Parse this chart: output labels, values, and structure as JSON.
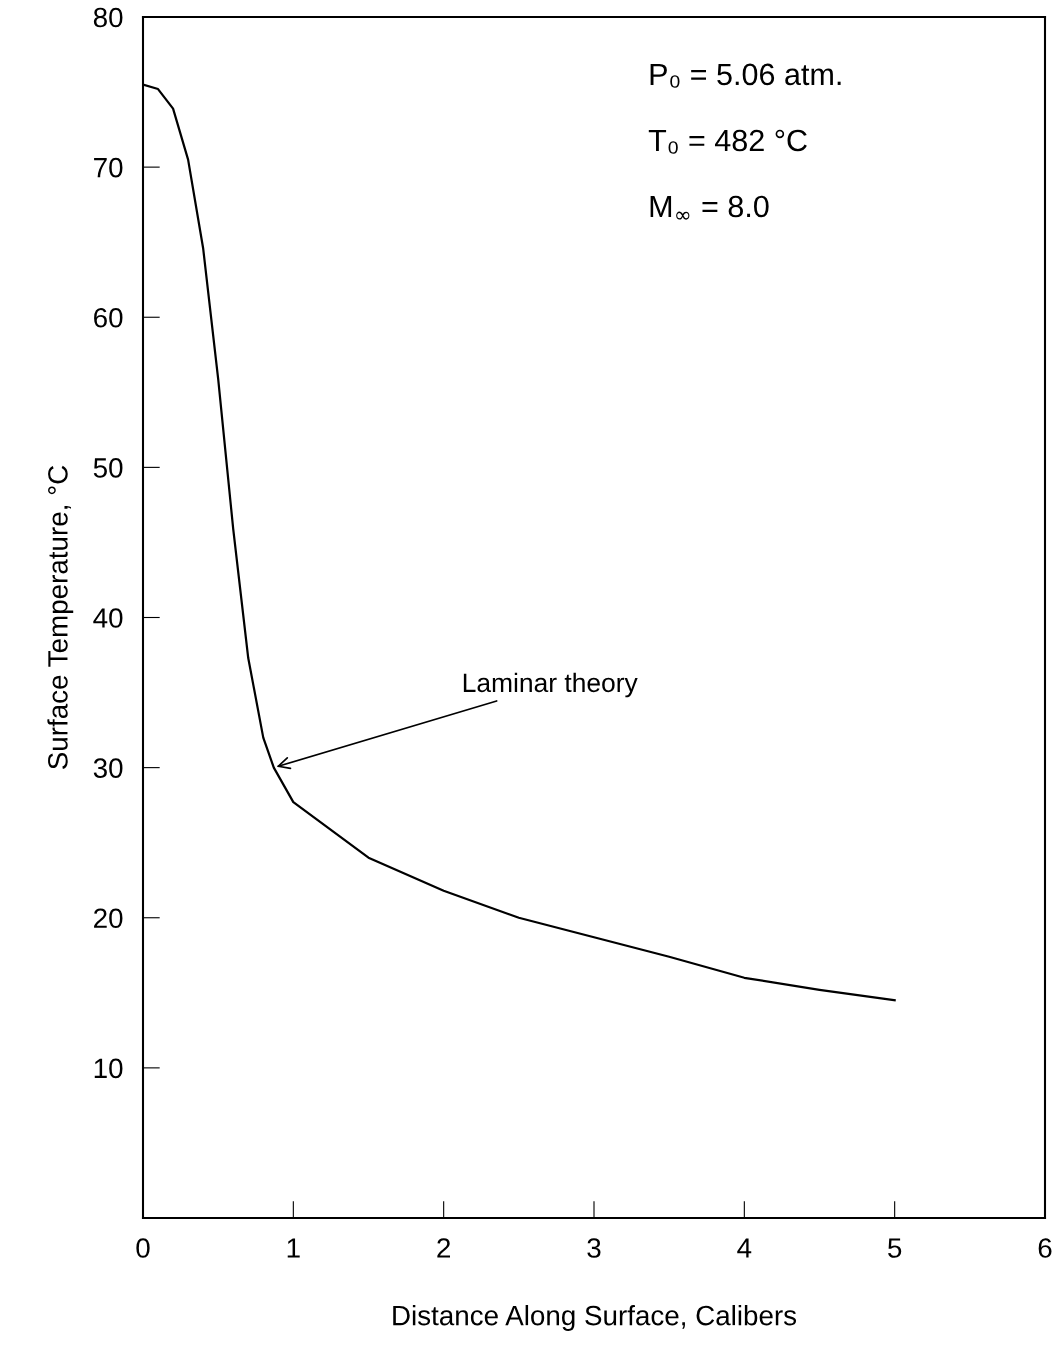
{
  "chart_data": {
    "type": "line",
    "xlabel": "Distance Along Surface, Calibers",
    "ylabel": "Surface Temperature, °C",
    "x": [
      0,
      0.1,
      0.2,
      0.3,
      0.4,
      0.5,
      0.6,
      0.7,
      0.8,
      0.87,
      1.0,
      1.5,
      2.0,
      2.5,
      3.0,
      3.5,
      4.0,
      4.5,
      5.0
    ],
    "series": [
      {
        "color": "#000000",
        "values": [
          75.5,
          75.2,
          73.9,
          70.5,
          64.6,
          55.9,
          45.9,
          37.3,
          32.0,
          30.0,
          27.7,
          24.0,
          21.8,
          20.0,
          18.7,
          17.4,
          16.0,
          15.2,
          14.5
        ]
      }
    ],
    "xlim": [
      0,
      6
    ],
    "ylim": [
      0,
      80
    ],
    "xticks": [
      0,
      1,
      2,
      3,
      4,
      5,
      6
    ],
    "yticks": [
      10,
      20,
      30,
      40,
      50,
      60,
      70,
      80
    ],
    "annotations": [
      {
        "text": "Laminar theory",
        "x": 0.87,
        "y": 30
      },
      "P₀ = 5.06 atm.",
      "T₀ = 482 °C",
      "M$_{∞}$ = 8.0"
    ],
    "grid": false,
    "legend": false,
    "marker": "none",
    "line_style": "solid"
  }
}
